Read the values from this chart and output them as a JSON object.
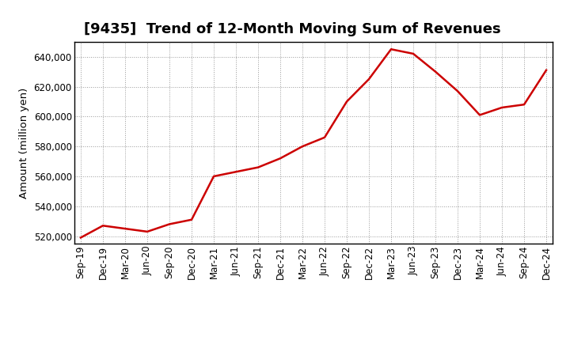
{
  "title": "[9435]  Trend of 12-Month Moving Sum of Revenues",
  "ylabel": "Amount (million yen)",
  "line_color": "#cc0000",
  "background_color": "#ffffff",
  "plot_bg_color": "#ffffff",
  "grid_color": "#999999",
  "ylim": [
    515000,
    650000
  ],
  "yticks": [
    520000,
    540000,
    560000,
    580000,
    600000,
    620000,
    640000
  ],
  "x_labels": [
    "Sep-19",
    "Dec-19",
    "Mar-20",
    "Jun-20",
    "Sep-20",
    "Dec-20",
    "Mar-21",
    "Jun-21",
    "Sep-21",
    "Dec-21",
    "Mar-22",
    "Jun-22",
    "Sep-22",
    "Dec-22",
    "Mar-23",
    "Jun-23",
    "Sep-23",
    "Dec-23",
    "Mar-24",
    "Jun-24",
    "Sep-24",
    "Dec-24"
  ],
  "values": [
    519000,
    527000,
    525000,
    523000,
    528000,
    531000,
    560000,
    563000,
    566000,
    572000,
    580000,
    586000,
    610000,
    625000,
    645000,
    642000,
    630000,
    617000,
    601000,
    606000,
    608000,
    631000
  ],
  "title_fontsize": 13,
  "tick_fontsize": 8.5,
  "ylabel_fontsize": 9.5,
  "line_width": 1.8
}
